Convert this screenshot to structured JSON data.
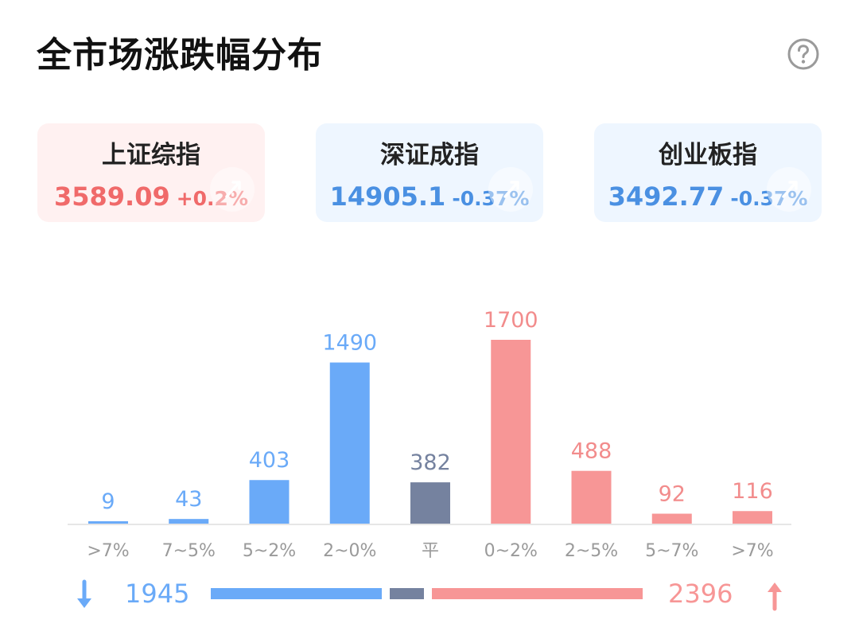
{
  "header": {
    "title": "全市场涨跌幅分布"
  },
  "icons": {
    "help": "help-circle-icon",
    "card_decoration": "trend-up-arrow-icon",
    "down_arrow": "arrow-down-icon",
    "up_arrow": "arrow-up-icon"
  },
  "colors": {
    "up": "#f79696",
    "down": "#6aaaf8",
    "flat": "#75829f",
    "up_text": "#f06a6a",
    "down_text": "#4a90e2"
  },
  "indices": [
    {
      "name": "上证综指",
      "value": "3589.09",
      "change": "+0.2%",
      "trend": "up"
    },
    {
      "name": "深证成指",
      "value": "14905.1",
      "change": "-0.37%",
      "trend": "down"
    },
    {
      "name": "创业板指",
      "value": "3492.77",
      "change": "-0.37%",
      "trend": "down"
    }
  ],
  "chart_data": {
    "type": "bar",
    "title": "",
    "xlabel": "",
    "ylabel": "",
    "categories": [
      ">7%",
      "7~5%",
      "5~2%",
      "2~0%",
      "平",
      "0~2%",
      "2~5%",
      "5~7%",
      ">7%"
    ],
    "values": [
      9,
      43,
      403,
      1490,
      382,
      1700,
      488,
      92,
      116
    ],
    "groups": [
      "down",
      "down",
      "down",
      "down",
      "flat",
      "up",
      "up",
      "up",
      "up"
    ],
    "ylim": [
      0,
      1700
    ],
    "grid": false,
    "legend": "none"
  },
  "summary": {
    "down_count": "1945",
    "up_count": "2396",
    "flat_count": 382
  }
}
